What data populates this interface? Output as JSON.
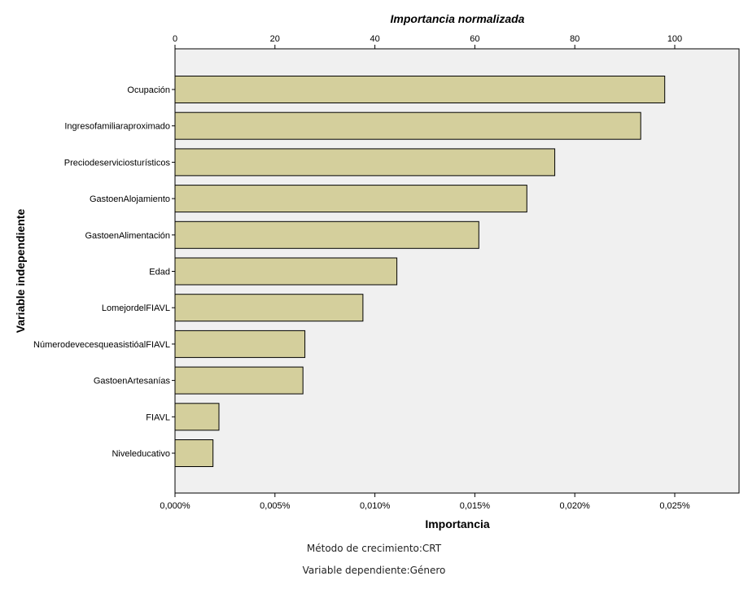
{
  "chart_data": {
    "type": "bar",
    "orientation": "horizontal",
    "title": "",
    "top_axis_label": "Importancia normalizada",
    "top_axis_ticks": [
      "0",
      "20",
      "40",
      "60",
      "80",
      "100"
    ],
    "top_axis_range": [
      0,
      113
    ],
    "xlabel": "Importancia",
    "x_ticks": [
      "0,000%",
      "0,005%",
      "0,010%",
      "0,015%",
      "0,020%",
      "0,025%"
    ],
    "xlim": [
      0,
      0.0278
    ],
    "ylabel": "Variable independiente",
    "categories": [
      "Ocupación",
      "Ingresofamiliaraproximado",
      "Preciodeserviciosturísticos",
      "GastoenAlojamiento",
      "GastoenAlimentación",
      "Edad",
      "LomejordelFIAVL",
      "NúmerodevecesqueasistióalFIAVL",
      "GastoenArtesanías",
      "FIAVL",
      "Niveleducativo"
    ],
    "values": [
      0.0245,
      0.0233,
      0.019,
      0.0176,
      0.0152,
      0.0111,
      0.0094,
      0.0065,
      0.0064,
      0.0022,
      0.0019
    ],
    "bar_color": "#d4cf9c",
    "plot_background": "#f0f0f0",
    "grid": false,
    "legend": "none"
  },
  "footnotes": {
    "method": "Método de crecimiento:CRT",
    "dependent": "Variable dependiente:Género"
  }
}
